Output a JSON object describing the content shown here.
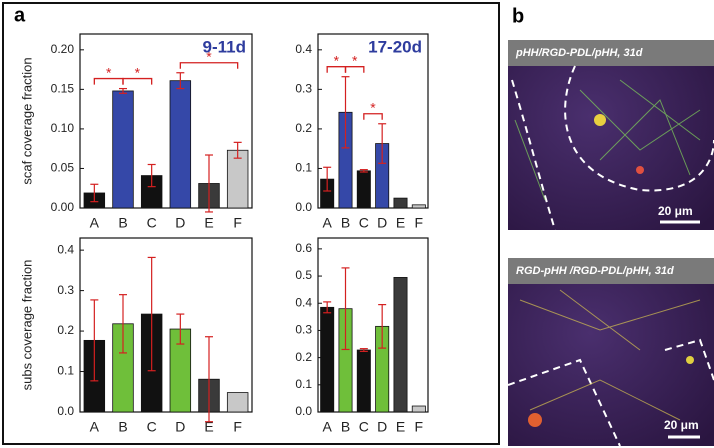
{
  "panels": {
    "a": "a",
    "b": "b"
  },
  "images": [
    {
      "caption": "pHH/RGD-PDL/pHH, 31d",
      "scale_bar": "20 μm"
    },
    {
      "caption": "RGD-pHH /RGD-PDL/pHH, 31d",
      "scale_bar": "20 μm"
    }
  ],
  "chart_data": [
    {
      "type": "bar",
      "title": "9-11d",
      "title_color": "#2e3c9e",
      "y_label": "scaf coverage fraction",
      "categories": [
        "A",
        "B",
        "C",
        "D",
        "E",
        "F"
      ],
      "values": [
        0.019,
        0.148,
        0.041,
        0.161,
        0.031,
        0.073
      ],
      "errors": [
        0.011,
        0.003,
        0.014,
        0.01,
        0.036,
        0.01
      ],
      "colors": [
        "#111111",
        "#3548a8",
        "#111111",
        "#3548a8",
        "#3a3a3a",
        "#c8c8c8"
      ],
      "error_color": "#d42020",
      "ylim": [
        0,
        0.22
      ],
      "yticks": [
        {
          "value": 0,
          "label": "0.00"
        },
        {
          "value": 0.05,
          "label": "0.05"
        },
        {
          "value": 0.1,
          "label": "0.10"
        },
        {
          "value": 0.15,
          "label": "0.15"
        },
        {
          "value": 0.2,
          "label": "0.20"
        }
      ],
      "significance": [
        {
          "pair": [
            "A",
            "B"
          ],
          "label": "*"
        },
        {
          "pair": [
            "B",
            "C"
          ],
          "label": "*"
        },
        {
          "pair": [
            "D",
            "F"
          ],
          "label": "*"
        }
      ]
    },
    {
      "type": "bar",
      "title": "17-20d",
      "title_color": "#2e3c9e",
      "categories": [
        "A",
        "B",
        "C",
        "D",
        "E",
        "F"
      ],
      "values": [
        0.073,
        0.242,
        0.094,
        0.163,
        0.025,
        0.008
      ],
      "errors": [
        0.03,
        0.09,
        0.003,
        0.05,
        null,
        null
      ],
      "colors": [
        "#111111",
        "#3548a8",
        "#111111",
        "#3548a8",
        "#3a3a3a",
        "#c8c8c8"
      ],
      "error_color": "#d42020",
      "ylim": [
        0,
        0.44
      ],
      "yticks": [
        {
          "value": 0,
          "label": "0.0"
        },
        0.1,
        0.2,
        0.3,
        0.4
      ],
      "significance": [
        {
          "pair": [
            "A",
            "B"
          ],
          "label": "*"
        },
        {
          "pair": [
            "B",
            "C"
          ],
          "label": "*"
        },
        {
          "pair": [
            "C",
            "D"
          ],
          "label": "*"
        }
      ]
    },
    {
      "type": "bar",
      "y_label": "subs coverage fraction",
      "categories": [
        "A",
        "B",
        "C",
        "D",
        "E",
        "F"
      ],
      "values": [
        0.177,
        0.218,
        0.242,
        0.205,
        0.081,
        0.048
      ],
      "errors": [
        0.1,
        0.072,
        0.14,
        0.037,
        0.105,
        null
      ],
      "colors": [
        "#111111",
        "#6fbf3a",
        "#111111",
        "#6fbf3a",
        "#3a3a3a",
        "#c8c8c8"
      ],
      "error_color": "#d42020",
      "ylim": [
        0,
        0.43
      ],
      "yticks": [
        {
          "value": 0,
          "label": "0.0"
        },
        0.1,
        0.2,
        0.3,
        0.4
      ]
    },
    {
      "type": "bar",
      "categories": [
        "A",
        "B",
        "C",
        "D",
        "E",
        "F"
      ],
      "values": [
        0.385,
        0.38,
        0.228,
        0.315,
        0.495,
        0.022
      ],
      "errors": [
        0.02,
        0.15,
        0.005,
        0.08,
        null,
        null
      ],
      "colors": [
        "#111111",
        "#6fbf3a",
        "#111111",
        "#6fbf3a",
        "#3a3a3a",
        "#c8c8c8"
      ],
      "error_color": "#d42020",
      "ylim": [
        0,
        0.64
      ],
      "yticks": [
        {
          "value": 0,
          "label": "0.0"
        },
        0.1,
        0.2,
        0.3,
        0.4,
        0.5,
        0.6
      ]
    }
  ]
}
